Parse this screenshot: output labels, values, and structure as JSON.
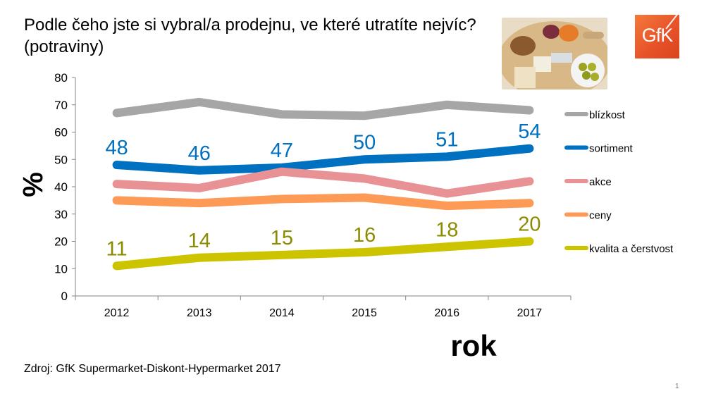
{
  "slide": {
    "title": "Podle čeho jste si vybral/a prodejnu, ve které utratíte nejvíc? (potraviny)",
    "logo_text": "GfK",
    "image_description": "food-platter-photo",
    "source": "Zdroj: GfK Supermarket-Diskont-Hypermarket 2017",
    "page_number": "1"
  },
  "chart_data": {
    "type": "line",
    "title": "Podle čeho jste si vybral/a prodejnu, ve které utratíte nejvíc? (potraviny)",
    "xlabel": "rok",
    "ylabel": "%",
    "x": [
      "2012",
      "2013",
      "2014",
      "2015",
      "2016",
      "2017"
    ],
    "ylim": [
      0,
      80
    ],
    "yticks": [
      0,
      10,
      20,
      30,
      40,
      50,
      60,
      70,
      80
    ],
    "grid": false,
    "legend_position": "right",
    "series": [
      {
        "name": "blízkost",
        "color": "#a6a6a6",
        "values": [
          67,
          71,
          66.5,
          66,
          70,
          68
        ],
        "labels": false
      },
      {
        "name": "sortiment",
        "color": "#0070c0",
        "label_color": "#0070c0",
        "values": [
          48,
          46,
          47,
          50,
          51,
          54
        ],
        "labels": true
      },
      {
        "name": "akce",
        "color": "#e99296",
        "values": [
          41,
          39.5,
          45.5,
          43,
          37.5,
          42
        ],
        "labels": false
      },
      {
        "name": "ceny",
        "color": "#fd9a55",
        "values": [
          35,
          34,
          35.5,
          36,
          33,
          34
        ],
        "labels": false
      },
      {
        "name": "kvalita a čerstvost",
        "color": "#cdc400",
        "label_color": "#8b8b00",
        "values": [
          11,
          14,
          15,
          16,
          18,
          20
        ],
        "labels": true
      }
    ]
  }
}
